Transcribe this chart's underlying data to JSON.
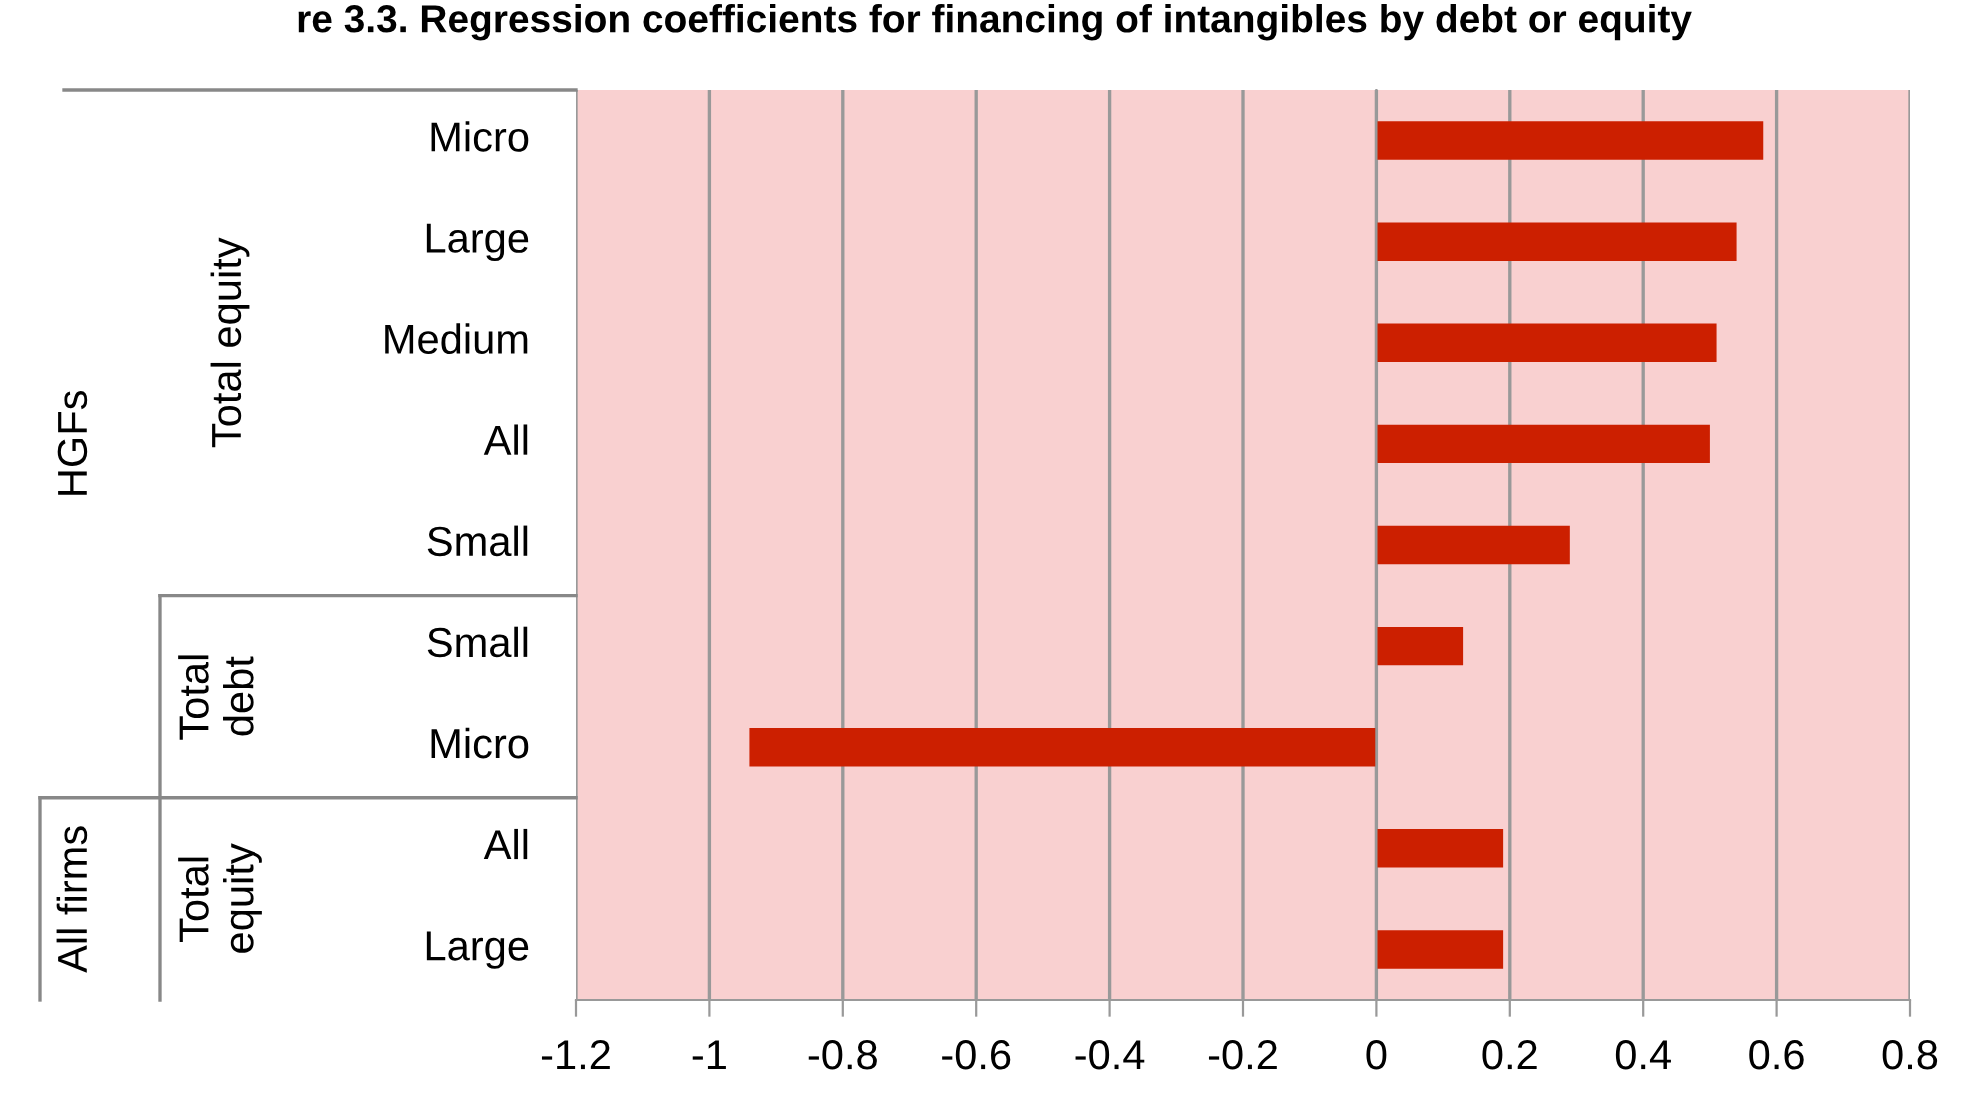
{
  "chart_data": {
    "type": "bar",
    "orientation": "horizontal",
    "title": "re 3.3. Regression coefficients for financing of intangibles by debt or equity",
    "categories": [
      "Micro",
      "Large",
      "Medium",
      "All",
      "Small",
      "Small",
      "Micro",
      "All",
      "Large"
    ],
    "values": [
      0.58,
      0.54,
      0.51,
      0.5,
      0.29,
      0.13,
      -0.94,
      0.19,
      0.19
    ],
    "color": "#cc1f00",
    "xlim": [
      -1.2,
      0.8
    ],
    "xticks": [
      -1.2,
      -1,
      -0.8,
      -0.6,
      -0.4,
      -0.2,
      0,
      0.2,
      0.4,
      0.6,
      0.8
    ],
    "grid": "x",
    "annotations": [
      "HGFs",
      "Total equity",
      "Total debt",
      "All firms",
      "Total equity"
    ]
  }
}
